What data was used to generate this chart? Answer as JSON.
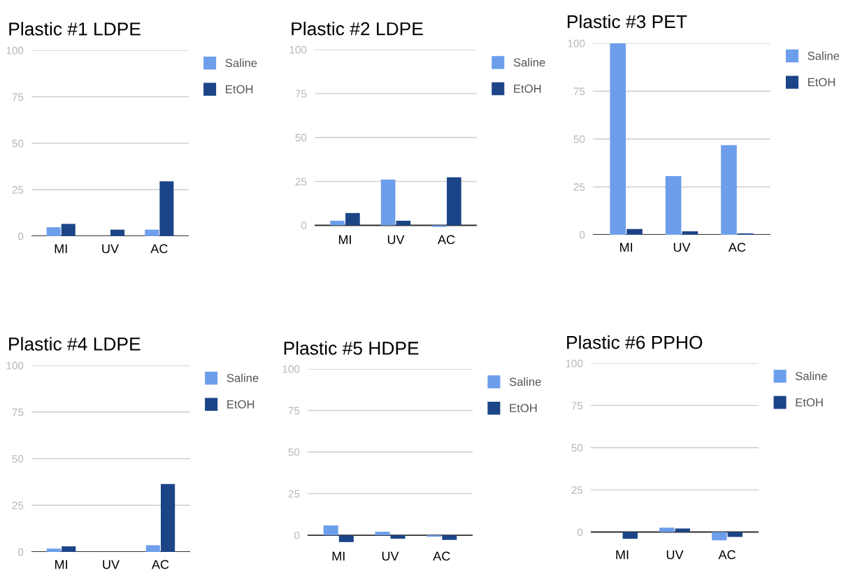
{
  "chart_data": [
    {
      "type": "bar",
      "title": "Plastic #1 LDPE",
      "categories": [
        "MI",
        "UV",
        "AC"
      ],
      "ylim": [
        0,
        100
      ],
      "yticks": [
        0,
        25,
        50,
        75,
        100
      ],
      "grid": "y",
      "legend": "right",
      "series": [
        {
          "name": "Saline",
          "color": "#6d9eeb",
          "values": [
            4.8,
            null,
            3.5
          ]
        },
        {
          "name": "EtOH",
          "color": "#1c4587",
          "values": [
            6.6,
            3.5,
            29.5
          ]
        }
      ]
    },
    {
      "type": "bar",
      "title": "Plastic #2 LDPE",
      "categories": [
        "MI",
        "UV",
        "AC"
      ],
      "ylim": [
        -1,
        100
      ],
      "yticks": [
        0,
        25,
        50,
        75,
        100
      ],
      "grid": "y",
      "legend": "right",
      "series": [
        {
          "name": "Saline",
          "color": "#6d9eeb",
          "values": [
            2.6,
            26,
            -0.9
          ]
        },
        {
          "name": "EtOH",
          "color": "#1c4587",
          "values": [
            7,
            2.6,
            27.3
          ]
        }
      ]
    },
    {
      "type": "bar",
      "title": "Plastic #3 PET",
      "categories": [
        "MI",
        "UV",
        "AC"
      ],
      "ylim": [
        0,
        100
      ],
      "yticks": [
        0,
        25,
        50,
        75,
        100
      ],
      "grid": "y",
      "legend": "right",
      "series": [
        {
          "name": "Saline",
          "color": "#6d9eeb",
          "values": [
            100,
            30.7,
            46.8
          ]
        },
        {
          "name": "EtOH",
          "color": "#1c4587",
          "values": [
            3,
            1.8,
            0.7
          ]
        }
      ]
    },
    {
      "type": "bar",
      "title": "Plastic #4 LDPE",
      "categories": [
        "MI",
        "UV",
        "AC"
      ],
      "ylim": [
        0,
        100
      ],
      "yticks": [
        0,
        25,
        50,
        75,
        100
      ],
      "grid": "y",
      "legend": "right",
      "series": [
        {
          "name": "Saline",
          "color": "#6d9eeb",
          "values": [
            1.8,
            null,
            3.6
          ]
        },
        {
          "name": "EtOH",
          "color": "#1c4587",
          "values": [
            3,
            null,
            36.4
          ]
        }
      ]
    },
    {
      "type": "bar",
      "title": "Plastic #5 HDPE",
      "categories": [
        "MI",
        "UV",
        "AC"
      ],
      "ylim": [
        -5,
        100
      ],
      "yticks": [
        0,
        25,
        50,
        75,
        100
      ],
      "grid": "y",
      "legend": "right",
      "series": [
        {
          "name": "Saline",
          "color": "#6d9eeb",
          "values": [
            5.9,
            2.1,
            -0.9
          ]
        },
        {
          "name": "EtOH",
          "color": "#1c4587",
          "values": [
            -4.1,
            -2.1,
            -2.8
          ]
        }
      ]
    },
    {
      "type": "bar",
      "title": "Plastic #6 PPHO",
      "categories": [
        "MI",
        "UV",
        "AC"
      ],
      "ylim": [
        -6,
        100
      ],
      "yticks": [
        0,
        25,
        50,
        75,
        100
      ],
      "grid": "y",
      "legend": "right",
      "series": [
        {
          "name": "Saline",
          "color": "#6d9eeb",
          "values": [
            null,
            2.6,
            -4.9
          ]
        },
        {
          "name": "EtOH",
          "color": "#1c4587",
          "values": [
            -4,
            2.1,
            -2.9
          ]
        }
      ]
    }
  ]
}
